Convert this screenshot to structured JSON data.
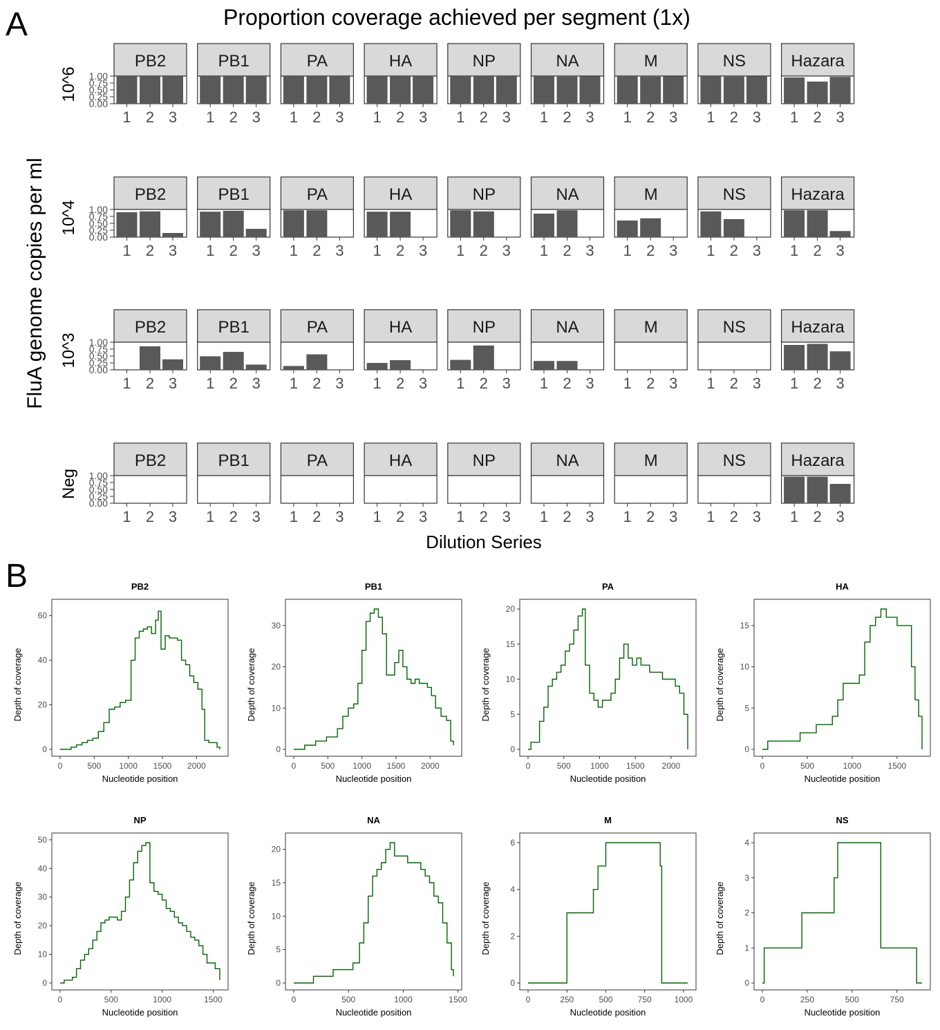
{
  "panel_a": {
    "letter": "A",
    "chart_data": {
      "type": "bar",
      "title": "Proportion coverage achieved per segment (1x)",
      "xlabel": "Dilution Series",
      "ylabel": "FluA genome copies per ml",
      "ylim": [
        0,
        1
      ],
      "yticks": [
        "0.00",
        "0.25",
        "0.50",
        "0.75",
        "1.00"
      ],
      "categories": [
        "1",
        "2",
        "3"
      ],
      "segments": [
        "PB2",
        "PB1",
        "PA",
        "HA",
        "NP",
        "NA",
        "M",
        "NS",
        "Hazara"
      ],
      "rows": [
        {
          "label": "10^6",
          "values": [
            [
              1,
              1,
              1
            ],
            [
              1,
              1,
              1
            ],
            [
              1,
              1,
              1
            ],
            [
              1,
              1,
              1
            ],
            [
              1,
              1,
              1
            ],
            [
              1,
              0.98,
              0.99
            ],
            [
              1,
              0.98,
              0.99
            ],
            [
              1,
              0.98,
              0.99
            ],
            [
              0.95,
              0.8,
              0.97
            ]
          ]
        },
        {
          "label": "10^4",
          "values": [
            [
              0.9,
              0.93,
              0.15
            ],
            [
              0.92,
              0.95,
              0.3
            ],
            [
              0.97,
              0.97,
              0
            ],
            [
              0.92,
              0.92,
              0
            ],
            [
              0.97,
              0.93,
              0
            ],
            [
              0.85,
              0.97,
              0
            ],
            [
              0.6,
              0.68,
              0
            ],
            [
              0.93,
              0.65,
              0
            ],
            [
              0.97,
              0.97,
              0.22
            ]
          ]
        },
        {
          "label": "10^3",
          "values": [
            [
              0,
              0.85,
              0.38
            ],
            [
              0.49,
              0.65,
              0.19
            ],
            [
              0.14,
              0.56,
              0
            ],
            [
              0.25,
              0.35,
              0
            ],
            [
              0.36,
              0.88,
              0
            ],
            [
              0.32,
              0.32,
              0
            ],
            [
              0,
              0,
              0
            ],
            [
              0,
              0,
              0
            ],
            [
              0.9,
              0.94,
              0.67
            ]
          ]
        },
        {
          "label": "Neg",
          "values": [
            [
              0,
              0,
              0
            ],
            [
              0,
              0,
              0
            ],
            [
              0,
              0,
              0
            ],
            [
              0,
              0,
              0
            ],
            [
              0,
              0,
              0
            ],
            [
              0,
              0,
              0
            ],
            [
              0,
              0,
              0
            ],
            [
              0,
              0,
              0
            ],
            [
              0.96,
              0.96,
              0.7
            ]
          ]
        }
      ]
    }
  },
  "panel_b": {
    "letter": "B",
    "chart_data": [
      {
        "type": "line",
        "title": "PB2",
        "xlabel": "Nucleotide position",
        "ylabel": "Depth of coverage",
        "xlim": [
          0,
          2341
        ],
        "ylim": [
          0,
          63
        ],
        "xticks": [
          0,
          500,
          1000,
          1500,
          2000
        ],
        "yticks": [
          0,
          20,
          40,
          60
        ],
        "x": [
          0,
          80,
          160,
          240,
          320,
          400,
          480,
          560,
          640,
          720,
          800,
          880,
          960,
          1040,
          1100,
          1160,
          1220,
          1280,
          1340,
          1400,
          1440,
          1480,
          1540,
          1600,
          1660,
          1720,
          1780,
          1840,
          1900,
          1960,
          2020,
          2080,
          2120,
          2180,
          2240,
          2300,
          2341
        ],
        "y": [
          0,
          0,
          1,
          2,
          3,
          4,
          5,
          8,
          12,
          18,
          19,
          21,
          22,
          40,
          50,
          53,
          54,
          55,
          52,
          58,
          62,
          45,
          51,
          50,
          50,
          49,
          40,
          38,
          33,
          30,
          27,
          18,
          4,
          3,
          3,
          1,
          0
        ]
      },
      {
        "type": "line",
        "title": "PB1",
        "xlabel": "Nucleotide position",
        "ylabel": "Depth of coverage",
        "xlim": [
          0,
          2341
        ],
        "ylim": [
          0,
          34
        ],
        "xticks": [
          0,
          500,
          1000,
          1500,
          2000
        ],
        "yticks": [
          0,
          10,
          20,
          30
        ],
        "x": [
          0,
          80,
          160,
          240,
          320,
          400,
          480,
          560,
          640,
          720,
          800,
          880,
          940,
          1000,
          1060,
          1120,
          1180,
          1240,
          1300,
          1360,
          1420,
          1480,
          1540,
          1600,
          1660,
          1720,
          1780,
          1840,
          1900,
          1960,
          2020,
          2080,
          2160,
          2240,
          2300,
          2341
        ],
        "y": [
          0,
          0,
          1,
          1,
          2,
          2,
          3,
          3,
          5,
          8,
          10,
          11,
          16,
          24,
          31,
          33,
          34,
          32,
          28,
          18,
          18,
          21,
          24,
          20,
          17,
          16,
          17,
          16,
          16,
          15,
          13,
          10,
          8,
          7,
          2,
          1
        ]
      },
      {
        "type": "line",
        "title": "PA",
        "xlabel": "Nucleotide position",
        "ylabel": "Depth of coverage",
        "xlim": [
          0,
          2233
        ],
        "ylim": [
          0,
          20
        ],
        "xticks": [
          0,
          500,
          1000,
          1500,
          2000
        ],
        "yticks": [
          0,
          5,
          10,
          15,
          20
        ],
        "x": [
          0,
          40,
          100,
          160,
          220,
          280,
          340,
          400,
          460,
          520,
          580,
          640,
          700,
          760,
          800,
          860,
          920,
          980,
          1040,
          1100,
          1160,
          1220,
          1280,
          1340,
          1400,
          1460,
          1520,
          1580,
          1640,
          1700,
          1760,
          1820,
          1880,
          1940,
          2000,
          2060,
          2120,
          2180,
          2233
        ],
        "y": [
          0,
          1,
          1,
          4,
          6,
          9,
          10,
          11,
          12,
          14,
          15,
          17,
          19,
          20,
          12,
          8,
          7,
          6,
          7,
          7,
          8,
          10,
          13,
          15,
          13,
          12,
          13,
          12,
          12,
          11,
          11,
          11,
          10,
          10,
          10,
          9,
          8,
          5,
          0
        ]
      },
      {
        "type": "line",
        "title": "HA",
        "xlabel": "Nucleotide position",
        "ylabel": "Depth of coverage",
        "xlim": [
          0,
          1778
        ],
        "ylim": [
          0,
          17
        ],
        "xticks": [
          0,
          500,
          1000,
          1500
        ],
        "yticks": [
          0,
          5,
          10,
          15
        ],
        "x": [
          0,
          60,
          120,
          180,
          240,
          300,
          360,
          420,
          480,
          540,
          600,
          660,
          720,
          780,
          840,
          900,
          960,
          1020,
          1080,
          1140,
          1200,
          1260,
          1320,
          1380,
          1440,
          1500,
          1560,
          1620,
          1660,
          1700,
          1740,
          1778
        ],
        "y": [
          0,
          1,
          1,
          1,
          1,
          1,
          1,
          2,
          2,
          2,
          3,
          3,
          3,
          4,
          6,
          8,
          8,
          8,
          9,
          13,
          15,
          16,
          17,
          16,
          16,
          15,
          15,
          15,
          10,
          6,
          4,
          0
        ]
      },
      {
        "type": "line",
        "title": "NP",
        "xlabel": "Nucleotide position",
        "ylabel": "Depth of coverage",
        "xlim": [
          0,
          1565
        ],
        "ylim": [
          0,
          49
        ],
        "xticks": [
          0,
          500,
          1000,
          1500
        ],
        "yticks": [
          0,
          10,
          20,
          30,
          40,
          50
        ],
        "x": [
          0,
          40,
          80,
          120,
          160,
          200,
          240,
          280,
          320,
          360,
          400,
          440,
          480,
          520,
          560,
          600,
          640,
          680,
          720,
          760,
          800,
          840,
          880,
          920,
          960,
          1000,
          1040,
          1080,
          1120,
          1160,
          1200,
          1240,
          1280,
          1320,
          1360,
          1400,
          1440,
          1480,
          1520,
          1565
        ],
        "y": [
          0,
          1,
          1,
          2,
          5,
          8,
          10,
          12,
          15,
          18,
          21,
          22,
          23,
          23,
          22,
          25,
          30,
          36,
          42,
          46,
          48,
          49,
          35,
          32,
          31,
          29,
          26,
          25,
          23,
          21,
          20,
          18,
          16,
          15,
          13,
          10,
          7,
          7,
          5,
          1
        ]
      },
      {
        "type": "line",
        "title": "NA",
        "xlabel": "Nucleotide position",
        "ylabel": "Depth of coverage",
        "xlim": [
          0,
          1458
        ],
        "ylim": [
          0,
          21
        ],
        "xticks": [
          0,
          500,
          1000,
          1500
        ],
        "yticks": [
          0,
          5,
          10,
          15,
          20
        ],
        "x": [
          0,
          60,
          120,
          180,
          240,
          300,
          360,
          420,
          480,
          540,
          600,
          640,
          680,
          720,
          760,
          800,
          840,
          880,
          920,
          960,
          1000,
          1040,
          1080,
          1120,
          1160,
          1200,
          1240,
          1280,
          1320,
          1360,
          1400,
          1440,
          1458
        ],
        "y": [
          0,
          0,
          0,
          1,
          1,
          1,
          2,
          2,
          2,
          3,
          6,
          9,
          13,
          16,
          17,
          18,
          20,
          21,
          19,
          19,
          19,
          18,
          18,
          18,
          17,
          16,
          15,
          13,
          12,
          9,
          6,
          2,
          1
        ]
      },
      {
        "type": "line",
        "title": "M",
        "xlabel": "Nucleotide position",
        "ylabel": "Depth of coverage",
        "xlim": [
          0,
          1027
        ],
        "ylim": [
          0,
          6
        ],
        "xticks": [
          0,
          250,
          500,
          750,
          1000
        ],
        "yticks": [
          0,
          2,
          4,
          6
        ],
        "x": [
          0,
          100,
          200,
          240,
          250,
          300,
          350,
          400,
          420,
          450,
          500,
          550,
          600,
          650,
          700,
          750,
          800,
          850,
          860,
          900,
          960,
          1000,
          1027
        ],
        "y": [
          0,
          0,
          0,
          0,
          3,
          3,
          3,
          3,
          4,
          5,
          6,
          6,
          6,
          6,
          6,
          6,
          6,
          5,
          0,
          0,
          0,
          0,
          0
        ]
      },
      {
        "type": "line",
        "title": "NS",
        "xlabel": "Nucleotide position",
        "ylabel": "Depth of coverage",
        "xlim": [
          0,
          890
        ],
        "ylim": [
          0,
          4
        ],
        "xticks": [
          0,
          250,
          500,
          750
        ],
        "yticks": [
          0,
          1,
          2,
          3,
          4
        ],
        "x": [
          0,
          10,
          50,
          100,
          150,
          200,
          220,
          250,
          300,
          350,
          400,
          420,
          450,
          500,
          550,
          600,
          650,
          660,
          700,
          750,
          800,
          840,
          860,
          890
        ],
        "y": [
          0,
          1,
          1,
          1,
          1,
          1,
          2,
          2,
          2,
          2,
          3,
          4,
          4,
          4,
          4,
          4,
          4,
          1,
          1,
          1,
          1,
          1,
          0,
          0
        ]
      }
    ]
  },
  "colors": {
    "bar": "#595959",
    "strip": "#d9d9d9",
    "line": "#006400",
    "axis": "#333333",
    "tick_text": "#4d4d4d"
  }
}
